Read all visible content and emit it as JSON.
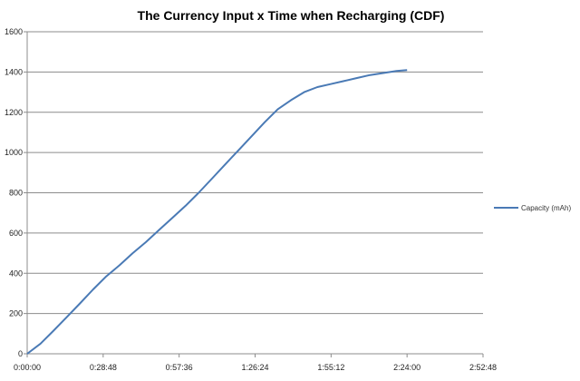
{
  "chart_data": {
    "type": "line",
    "title": "The Currency Input x Time when Recharging (CDF)",
    "xlabel": "",
    "ylabel": "",
    "x_ticks": [
      "0:00:00",
      "0:28:48",
      "0:57:36",
      "1:26:24",
      "1:55:12",
      "2:24:00",
      "2:52:48"
    ],
    "y_ticks": [
      "0",
      "200",
      "400",
      "600",
      "800",
      "1000",
      "1200",
      "1400",
      "1600"
    ],
    "xlim": [
      "0:00:00",
      "2:52:48"
    ],
    "ylim": [
      0,
      1600
    ],
    "grid": true,
    "legend_position": "right",
    "series": [
      {
        "name": "Capacity (mAh)",
        "color": "#4a7ab5",
        "x": [
          "0:00:00",
          "0:05:00",
          "0:10:00",
          "0:15:00",
          "0:20:00",
          "0:25:00",
          "0:30:00",
          "0:35:00",
          "0:40:00",
          "0:45:00",
          "0:50:00",
          "0:55:00",
          "1:00:00",
          "1:05:00",
          "1:10:00",
          "1:15:00",
          "1:20:00",
          "1:25:00",
          "1:30:00",
          "1:35:00",
          "1:40:00",
          "1:45:00",
          "1:50:00",
          "1:55:00",
          "2:00:00",
          "2:05:00",
          "2:10:00",
          "2:15:00",
          "2:20:00",
          "2:24:00"
        ],
        "values": [
          0,
          50,
          115,
          182,
          250,
          320,
          385,
          440,
          500,
          555,
          615,
          675,
          735,
          800,
          870,
          940,
          1010,
          1080,
          1150,
          1215,
          1260,
          1300,
          1325,
          1340,
          1355,
          1370,
          1385,
          1395,
          1405,
          1410
        ]
      }
    ]
  }
}
